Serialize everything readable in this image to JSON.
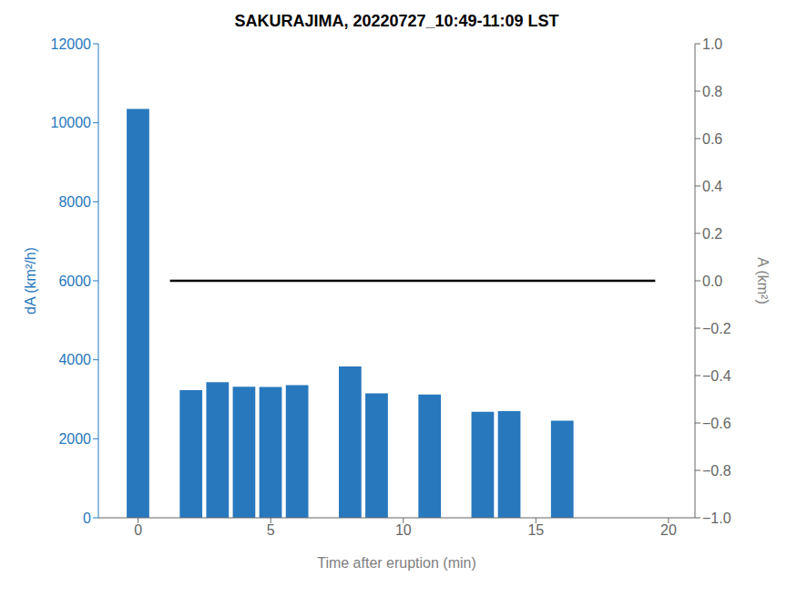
{
  "chart_data": {
    "type": "bar",
    "title": "SAKURAJIMA, 20220727_10:49-11:09 LST",
    "xlabel": "Time after eruption (min)",
    "ylabel": "dA (km²/h)",
    "y2label": "A (km²)",
    "x": [
      0,
      2,
      3,
      4,
      5,
      6,
      8,
      9,
      11,
      13,
      14,
      16
    ],
    "values": [
      10350,
      3230,
      3430,
      3320,
      3310,
      3360,
      3830,
      3150,
      3120,
      2680,
      2700,
      2460
    ],
    "color": "#2878BE",
    "xlim": [
      -1.5,
      21
    ],
    "xticks": [
      0,
      5,
      10,
      15,
      20
    ],
    "ylim": [
      0,
      12000
    ],
    "yticks": [
      0,
      2000,
      4000,
      6000,
      8000,
      10000,
      12000
    ],
    "y2lim": [
      -1,
      1
    ],
    "y2ticks": [
      {
        "value": -1,
        "label": "−1.0"
      },
      {
        "value": -0.8,
        "label": "−0.8"
      },
      {
        "value": -0.6,
        "label": "−0.6"
      },
      {
        "value": -0.4,
        "label": "−0.4"
      },
      {
        "value": -0.2,
        "label": "−0.2"
      },
      {
        "value": 0,
        "label": "0.0"
      },
      0.2,
      0.4,
      0.6,
      0.8,
      {
        "value": 1,
        "label": "1.0"
      }
    ],
    "hline": {
      "y": 6000,
      "x": [
        1.2,
        19.5
      ],
      "color": "black"
    },
    "grid": false
  }
}
